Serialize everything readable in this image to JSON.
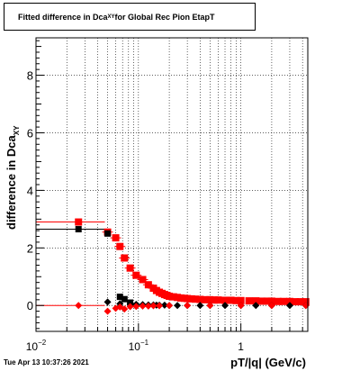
{
  "title": {
    "prefix": "Fitted difference in Dca",
    "sub": "XY",
    "suffix": " for Global Rec Pion EtapT"
  },
  "timestamp": "Tue Apr 13 10:37:26 2021",
  "chart_data": {
    "type": "scatter",
    "title": "Fitted difference in DcaXY for Global Rec Pion EtapT",
    "xlabel": "pT/|q| (GeV/c)",
    "ylabel": "difference in DcaXY",
    "ylabel_main": "difference in Dca",
    "ylabel_sub": "XY",
    "xscale": "log",
    "xlim": [
      0.01,
      4.5
    ],
    "ylim": [
      -0.9,
      9.3
    ],
    "grid": true,
    "xticks": [
      {
        "value": 0.01,
        "base": "10",
        "exp": "−2"
      },
      {
        "value": 0.1,
        "base": "10",
        "exp": "−1"
      },
      {
        "value": 1,
        "base": "1",
        "exp": ""
      }
    ],
    "yticks": [
      0,
      2,
      4,
      6,
      8
    ],
    "series": [
      {
        "color": "#ff0000",
        "marker": "square",
        "x": [
          0.026,
          0.05,
          0.06,
          0.066,
          0.073,
          0.083,
          0.095,
          0.11,
          0.125,
          0.14,
          0.15,
          0.16,
          0.17,
          0.18,
          0.19,
          0.2,
          0.22,
          0.24,
          0.26,
          0.28,
          0.3,
          0.33,
          0.36,
          0.4,
          0.45,
          0.5,
          0.55,
          0.6,
          0.7,
          0.8,
          0.9,
          1.0,
          1.2,
          1.4,
          1.6,
          1.8,
          2.0,
          2.3,
          2.6,
          3.0,
          3.4,
          3.8,
          4.3
        ],
        "y": [
          2.9,
          2.55,
          2.35,
          2.05,
          1.65,
          1.3,
          1.05,
          0.9,
          0.72,
          0.6,
          0.52,
          0.46,
          0.42,
          0.38,
          0.35,
          0.32,
          0.3,
          0.28,
          0.26,
          0.25,
          0.24,
          0.23,
          0.22,
          0.21,
          0.2,
          0.2,
          0.19,
          0.19,
          0.18,
          0.18,
          0.17,
          0.17,
          0.16,
          0.16,
          0.15,
          0.15,
          0.15,
          0.14,
          0.14,
          0.14,
          0.13,
          0.13,
          0.13
        ]
      },
      {
        "color": "#000000",
        "marker": "square",
        "x": [
          0.026,
          0.05,
          0.066,
          0.073,
          0.083
        ],
        "y": [
          2.65,
          2.5,
          0.3,
          0.22,
          0.1
        ]
      },
      {
        "color": "#000000",
        "marker": "diamond",
        "x": [
          0.05,
          0.066,
          0.083,
          0.095,
          0.11,
          0.125,
          0.14,
          0.15,
          0.16,
          0.18,
          0.2,
          0.24,
          0.3,
          0.4,
          0.5,
          0.7,
          1.0,
          1.4,
          2.0,
          3.0,
          4.3
        ],
        "y": [
          0.12,
          0.06,
          0.05,
          0.04,
          0.03,
          0.02,
          0.02,
          0.01,
          0.01,
          0.01,
          0.0,
          0.0,
          0.0,
          0.0,
          0.0,
          0.0,
          0.0,
          0.0,
          0.0,
          0.0,
          0.0
        ]
      },
      {
        "color": "#ff0000",
        "marker": "diamond",
        "x": [
          0.026,
          0.05,
          0.06,
          0.066,
          0.073,
          0.083,
          0.095,
          0.11,
          0.125,
          0.14,
          0.16,
          0.2,
          0.3,
          0.5,
          1.0,
          2.0,
          4.3
        ],
        "y": [
          0.0,
          -0.2,
          -0.1,
          -0.05,
          -0.12,
          -0.04,
          -0.03,
          -0.02,
          -0.02,
          -0.01,
          -0.01,
          0.0,
          0.0,
          0.0,
          0.0,
          0.0,
          0.0
        ]
      }
    ]
  }
}
